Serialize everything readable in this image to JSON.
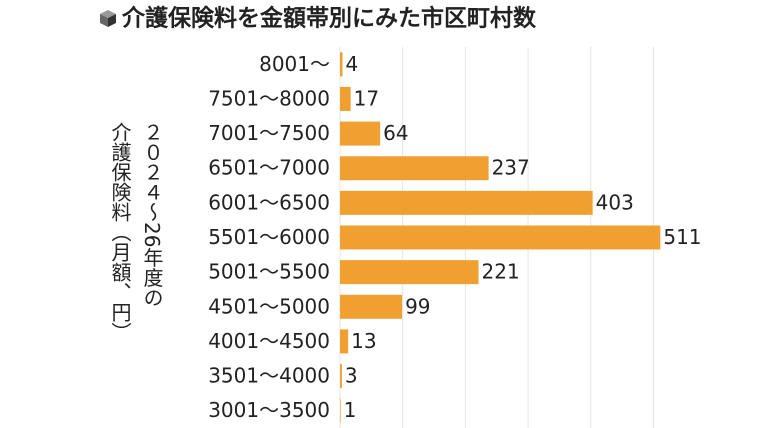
{
  "chart_data": {
    "type": "bar",
    "orientation": "horizontal",
    "title": "介護保険料を金額帯別にみた市区町村数",
    "y_label": [
      "２０２４～26年度の",
      "介護保険料（月額、円）"
    ],
    "categories": [
      "8001～",
      "7501～8000",
      "7001～7500",
      "6501～7000",
      "6001～6500",
      "5501～6000",
      "5001～5500",
      "4501～5000",
      "4001～4500",
      "3501～4000",
      "3001～3500"
    ],
    "values": [
      4,
      17,
      64,
      237,
      403,
      511,
      221,
      99,
      13,
      3,
      1
    ],
    "color": "#f0a030",
    "xlim": [
      0,
      520
    ],
    "xticks": [
      0,
      100,
      200,
      300,
      400,
      500
    ],
    "grid": true
  }
}
